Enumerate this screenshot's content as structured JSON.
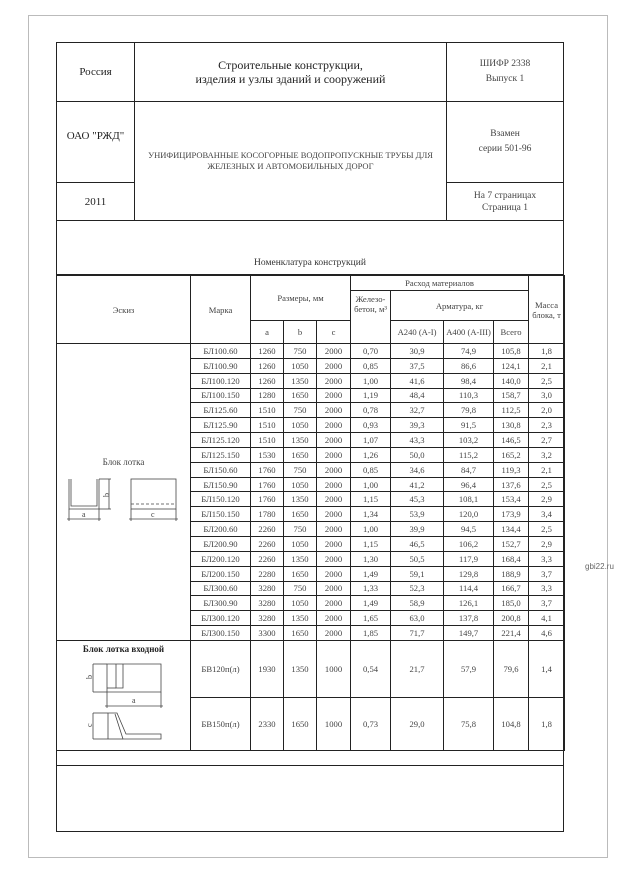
{
  "header": {
    "country": "Россия",
    "title_line1": "Строительные конструкции,",
    "title_line2": "изделия и узлы зданий и сооружений",
    "code": "ШИФР 2338",
    "issue": "Выпуск 1",
    "org": "ОАО \"РЖД\"",
    "series_title_line1": "УНИФИЦИРОВАННЫЕ КОСОГОРНЫЕ ВОДОПРОПУСКНЫЕ ТРУБЫ ДЛЯ",
    "series_title_line2": "ЖЕЛЕЗНЫХ И АВТОМОБИЛЬНЫХ ДОРОГ",
    "replaces": "Взамен",
    "replaces_series": "серии 501-96",
    "year": "2011",
    "pages": "На 7 страницах",
    "page": "Страница 1"
  },
  "section_title": "Номенклатура конструкций",
  "table": {
    "headers": {
      "sketch": "Эскиз",
      "mark": "Марка",
      "sizes": "Размеры, мм",
      "a": "a",
      "b": "b",
      "c": "c",
      "materials": "Расход материалов",
      "concrete": "Железо-бетон, м³",
      "rebar": "Арматура, кг",
      "a240": "А240 (А-I)",
      "a400": "А400 (А-III)",
      "total": "Всего",
      "mass": "Масса блока, т"
    },
    "group1_label": "Блок лотка",
    "group1_sketch_labels": {
      "a": "a",
      "b": "b",
      "c": "c"
    },
    "rows": [
      [
        "БЛ100.60",
        "1260",
        "750",
        "2000",
        "0,70",
        "30,9",
        "74,9",
        "105,8",
        "1,8"
      ],
      [
        "БЛ100.90",
        "1260",
        "1050",
        "2000",
        "0,85",
        "37,5",
        "86,6",
        "124,1",
        "2,1"
      ],
      [
        "БЛ100.120",
        "1260",
        "1350",
        "2000",
        "1,00",
        "41,6",
        "98,4",
        "140,0",
        "2,5"
      ],
      [
        "БЛ100.150",
        "1280",
        "1650",
        "2000",
        "1,19",
        "48,4",
        "110,3",
        "158,7",
        "3,0"
      ],
      [
        "БЛ125.60",
        "1510",
        "750",
        "2000",
        "0,78",
        "32,7",
        "79,8",
        "112,5",
        "2,0"
      ],
      [
        "БЛ125.90",
        "1510",
        "1050",
        "2000",
        "0,93",
        "39,3",
        "91,5",
        "130,8",
        "2,3"
      ],
      [
        "БЛ125.120",
        "1510",
        "1350",
        "2000",
        "1,07",
        "43,3",
        "103,2",
        "146,5",
        "2,7"
      ],
      [
        "БЛ125.150",
        "1530",
        "1650",
        "2000",
        "1,26",
        "50,0",
        "115,2",
        "165,2",
        "3,2"
      ],
      [
        "БЛ150.60",
        "1760",
        "750",
        "2000",
        "0,85",
        "34,6",
        "84,7",
        "119,3",
        "2,1"
      ],
      [
        "БЛ150.90",
        "1760",
        "1050",
        "2000",
        "1,00",
        "41,2",
        "96,4",
        "137,6",
        "2,5"
      ],
      [
        "БЛ150.120",
        "1760",
        "1350",
        "2000",
        "1,15",
        "45,3",
        "108,1",
        "153,4",
        "2,9"
      ],
      [
        "БЛ150.150",
        "1780",
        "1650",
        "2000",
        "1,34",
        "53,9",
        "120,0",
        "173,9",
        "3,4"
      ],
      [
        "БЛ200.60",
        "2260",
        "750",
        "2000",
        "1,00",
        "39,9",
        "94,5",
        "134,4",
        "2,5"
      ],
      [
        "БЛ200.90",
        "2260",
        "1050",
        "2000",
        "1,15",
        "46,5",
        "106,2",
        "152,7",
        "2,9"
      ],
      [
        "БЛ200.120",
        "2260",
        "1350",
        "2000",
        "1,30",
        "50,5",
        "117,9",
        "168,4",
        "3,3"
      ],
      [
        "БЛ200.150",
        "2280",
        "1650",
        "2000",
        "1,49",
        "59,1",
        "129,8",
        "188,9",
        "3,7"
      ],
      [
        "БЛ300.60",
        "3280",
        "750",
        "2000",
        "1,33",
        "52,3",
        "114,4",
        "166,7",
        "3,3"
      ],
      [
        "БЛ300.90",
        "3280",
        "1050",
        "2000",
        "1,49",
        "58,9",
        "126,1",
        "185,0",
        "3,7"
      ],
      [
        "БЛ300.120",
        "3280",
        "1350",
        "2000",
        "1,65",
        "63,0",
        "137,8",
        "200,8",
        "4,1"
      ],
      [
        "БЛ300.150",
        "3300",
        "1650",
        "2000",
        "1,85",
        "71,7",
        "149,7",
        "221,4",
        "4,6"
      ]
    ],
    "group2_label": "Блок лотка входной",
    "group2_sketch_labels": {
      "a": "a",
      "b": "b",
      "c": "c"
    },
    "rows2": [
      [
        "БВ120п(л)",
        "1930",
        "1350",
        "1000",
        "0,54",
        "21,7",
        "57,9",
        "79,6",
        "1,4"
      ],
      [
        "БВ150п(л)",
        "2330",
        "1650",
        "1000",
        "0,73",
        "29,0",
        "75,8",
        "104,8",
        "1,8"
      ]
    ]
  },
  "watermark": "gbi22.ru"
}
